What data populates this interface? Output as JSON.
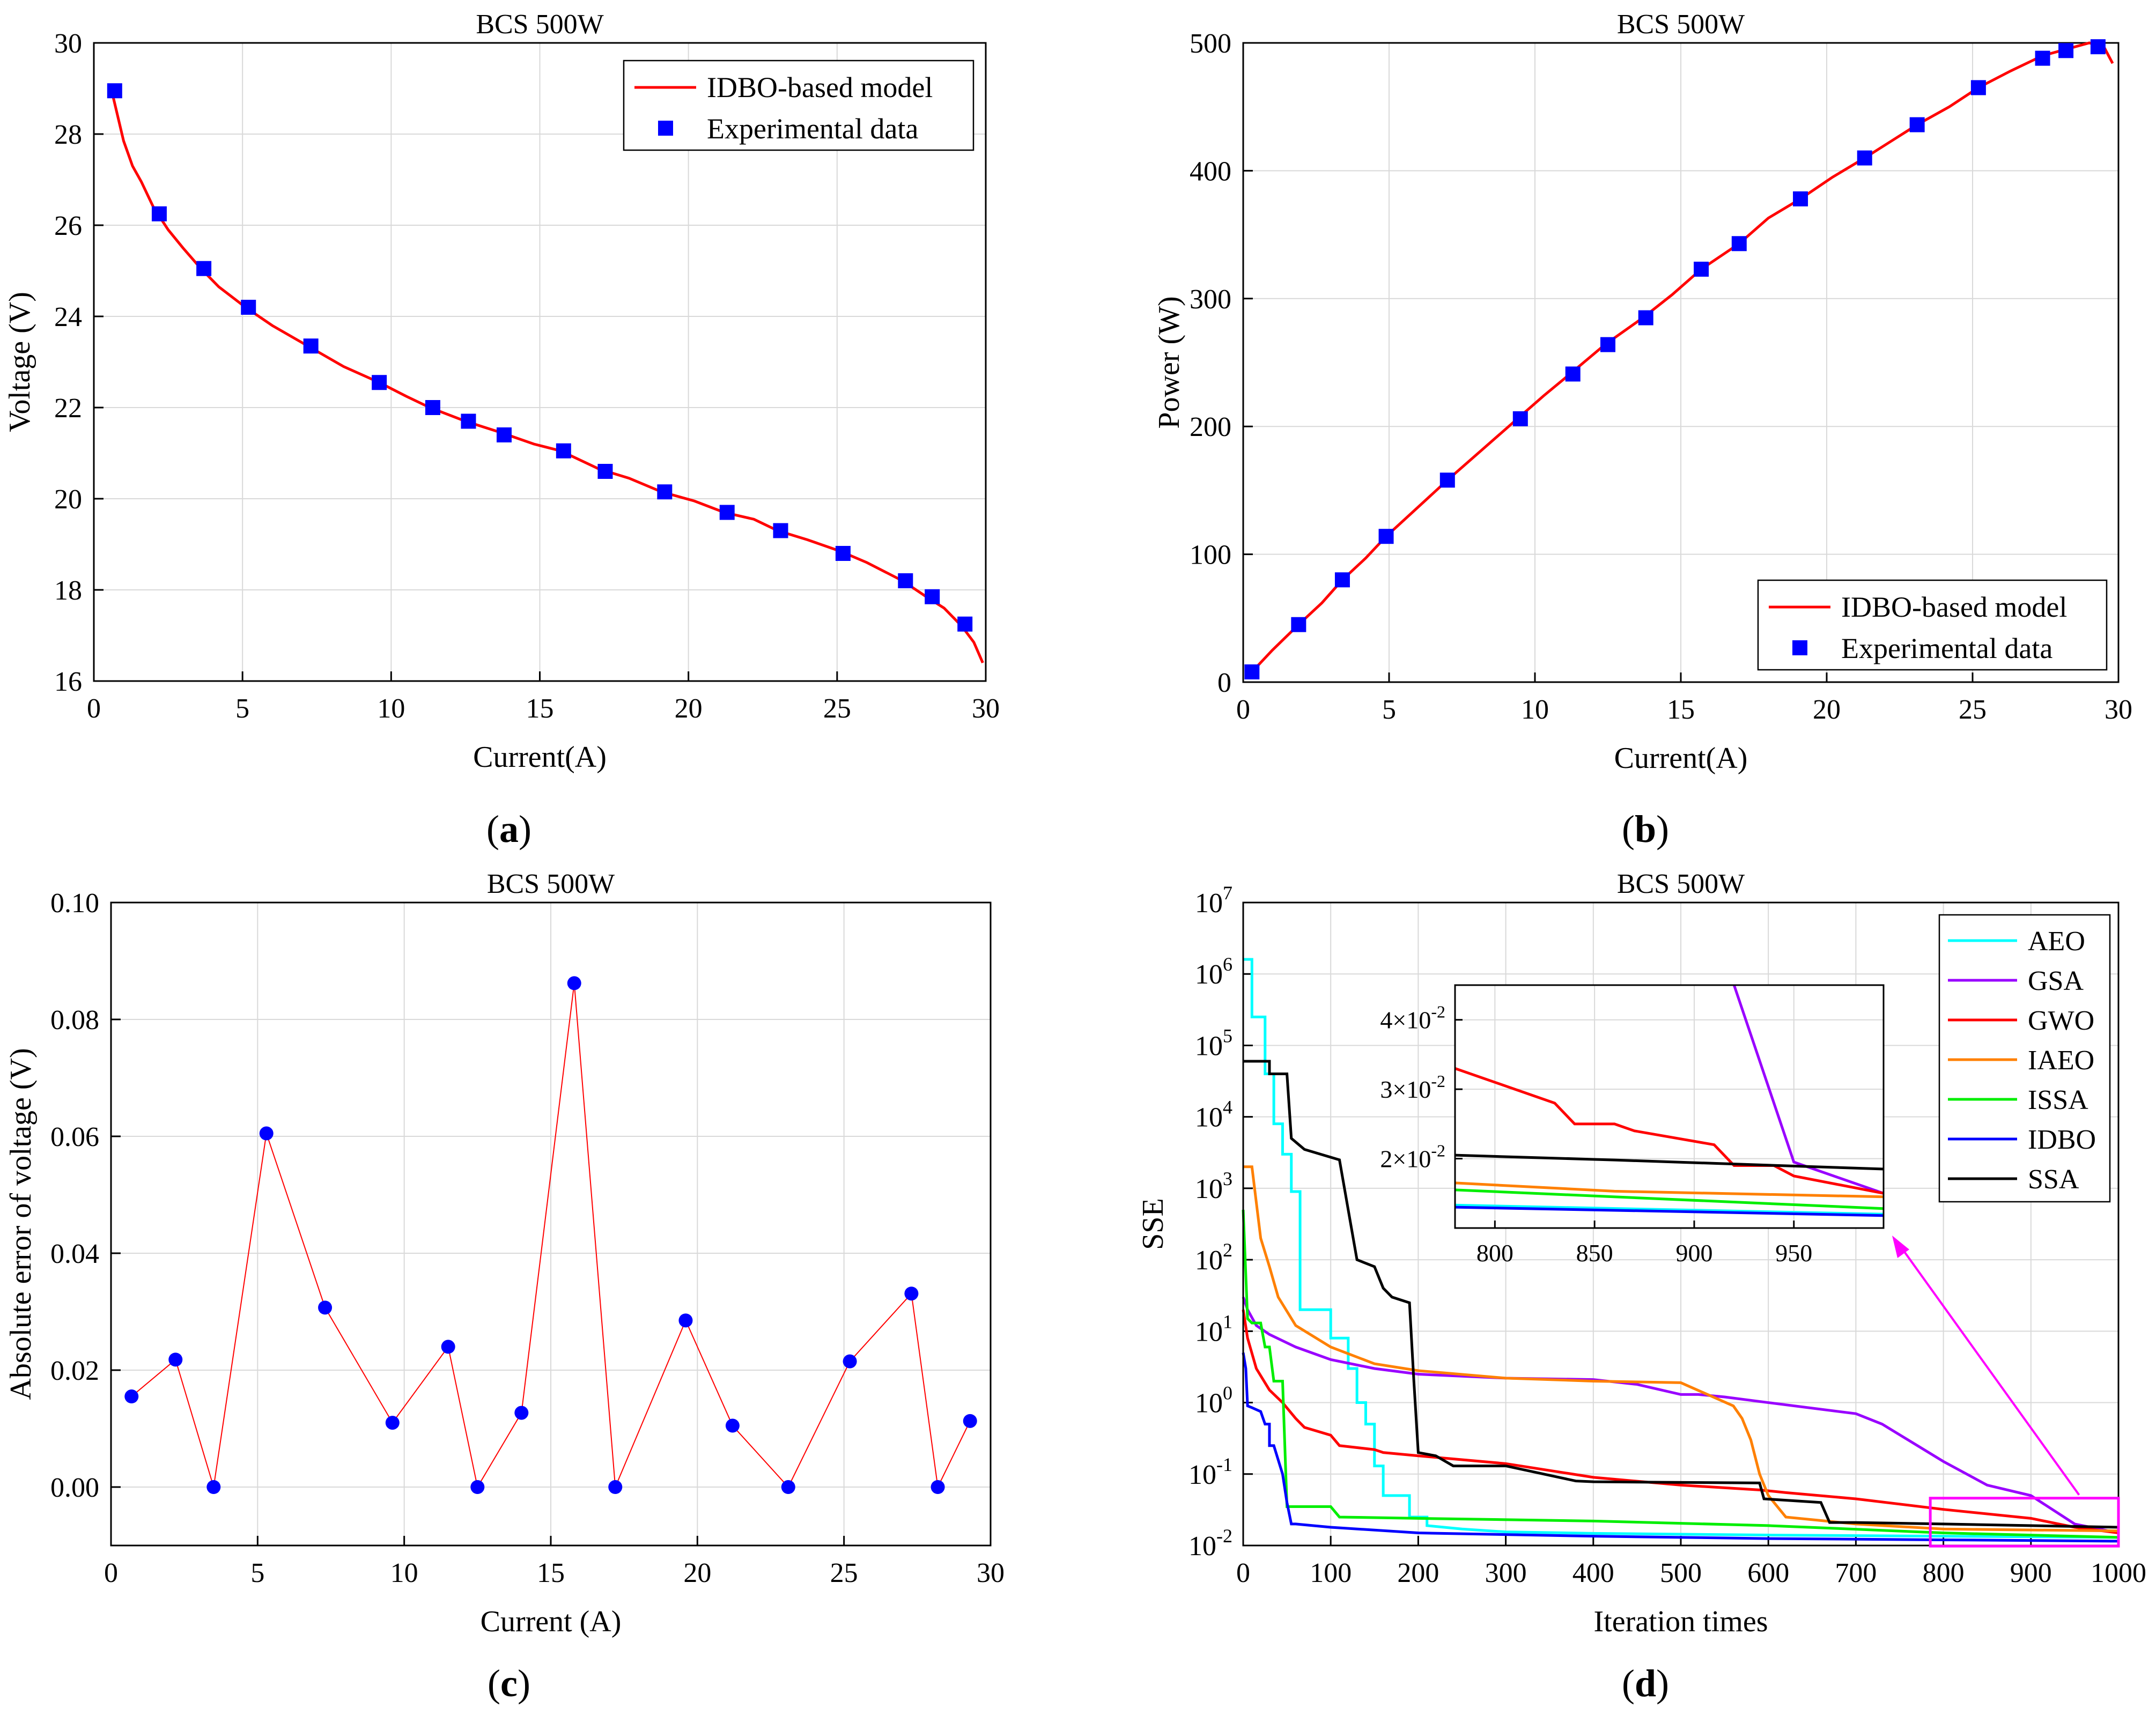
{
  "colors": {
    "model_line": "#ff0000",
    "exp_marker": "#0000ff",
    "error_line": "#ff0000",
    "error_marker": "#0000ff",
    "grid": "#d9d9d9",
    "inset_box": "#ff00ff"
  },
  "chart_data": [
    {
      "id": "a",
      "type": "line",
      "title": "BCS 500W",
      "panel_label": "(a)",
      "xlabel": "Current(A)",
      "ylabel": "Voltage (V)",
      "xlim": [
        0,
        30
      ],
      "ylim": [
        16,
        30
      ],
      "xticks": [
        0,
        5,
        10,
        15,
        20,
        25,
        30
      ],
      "yticks": [
        16,
        18,
        20,
        22,
        24,
        26,
        28,
        30
      ],
      "legend": {
        "position": "top-right",
        "entries": [
          "IDBO-based model",
          "Experimental data"
        ]
      },
      "model_curve": {
        "name": "IDBO-based model",
        "x": [
          0.6,
          0.8,
          1.0,
          1.3,
          1.6,
          2.0,
          2.5,
          3.0,
          3.6,
          4.2,
          5.1,
          6.0,
          7.2,
          8.4,
          9.6,
          10.5,
          11.3,
          12.5,
          13.7,
          14.8,
          15.7,
          17.0,
          18.0,
          19.1,
          20.2,
          21.2,
          22.2,
          23.0,
          24.0,
          25.1,
          26.0,
          27.2,
          28.0,
          28.6,
          29.2,
          29.6,
          29.9
        ],
        "y": [
          28.95,
          28.4,
          27.85,
          27.3,
          26.95,
          26.4,
          25.9,
          25.5,
          25.05,
          24.65,
          24.2,
          23.8,
          23.35,
          22.9,
          22.55,
          22.25,
          22.0,
          21.7,
          21.45,
          21.2,
          21.05,
          20.65,
          20.45,
          20.15,
          19.95,
          19.7,
          19.55,
          19.3,
          19.1,
          18.85,
          18.6,
          18.2,
          17.85,
          17.6,
          17.2,
          16.85,
          16.4
        ]
      },
      "experimental": {
        "name": "Experimental data",
        "x": [
          0.7,
          2.2,
          3.7,
          5.2,
          7.3,
          9.6,
          11.4,
          12.6,
          13.8,
          15.8,
          17.2,
          19.2,
          21.3,
          23.1,
          25.2,
          27.3,
          28.2,
          29.3
        ],
        "y": [
          28.95,
          26.25,
          25.05,
          24.2,
          23.35,
          22.55,
          22.0,
          21.7,
          21.4,
          21.05,
          20.6,
          20.15,
          19.7,
          19.3,
          18.8,
          18.2,
          17.85,
          17.25
        ]
      }
    },
    {
      "id": "b",
      "type": "line",
      "title": "BCS 500W",
      "panel_label": "(b)",
      "xlabel": "Current(A)",
      "ylabel": "Power (W)",
      "xlim": [
        0,
        30
      ],
      "ylim": [
        0,
        500
      ],
      "xticks": [
        0,
        5,
        10,
        15,
        20,
        25,
        30
      ],
      "yticks": [
        0,
        100,
        200,
        300,
        400,
        500
      ],
      "legend": {
        "position": "bottom-right",
        "entries": [
          "IDBO-based model",
          "Experimental data"
        ]
      },
      "model_curve": {
        "name": "IDBO-based model",
        "x": [
          0.3,
          1.0,
          1.9,
          2.7,
          3.4,
          4.2,
          4.9,
          6.0,
          7.0,
          8.2,
          9.4,
          10.3,
          11.2,
          12.4,
          13.7,
          14.7,
          15.7,
          17.0,
          18.0,
          19.1,
          20.2,
          21.3,
          22.2,
          23.1,
          24.2,
          25.2,
          26.3,
          27.4,
          28.2,
          29.0,
          29.5,
          29.8
        ],
        "y": [
          8,
          25,
          45,
          62,
          80,
          97,
          114,
          137,
          158,
          182,
          206,
          224,
          241,
          264,
          285,
          303,
          323,
          343,
          363,
          378,
          395,
          410,
          423,
          436,
          450,
          465,
          478,
          490,
          495,
          500,
          497,
          484
        ]
      },
      "experimental": {
        "name": "Experimental data",
        "x": [
          0.3,
          1.9,
          3.4,
          4.9,
          7.0,
          9.5,
          11.3,
          12.5,
          13.8,
          15.7,
          17.0,
          19.1,
          21.3,
          23.1,
          25.2,
          27.4,
          28.2,
          29.3
        ],
        "y": [
          8,
          45,
          80,
          114,
          158,
          206,
          241,
          264,
          285,
          323,
          343,
          378,
          410,
          436,
          465,
          488,
          494,
          497
        ]
      }
    },
    {
      "id": "c",
      "type": "line",
      "title": "BCS 500W",
      "panel_label": "(c)",
      "xlabel": "Current (A)",
      "ylabel": "Absolute error of voltage (V)",
      "xlim": [
        0,
        30
      ],
      "ylim": [
        -0.01,
        0.1
      ],
      "xticks": [
        0,
        5,
        10,
        15,
        20,
        25,
        30
      ],
      "yticks": [
        0.0,
        0.02,
        0.04,
        0.06,
        0.08,
        0.1
      ],
      "ytick_labels": [
        "0.00",
        "0.02",
        "0.04",
        "0.06",
        "0.08",
        "0.10"
      ],
      "series": [
        {
          "name": "Absolute error",
          "x": [
            0.7,
            2.2,
            3.5,
            5.3,
            7.3,
            9.6,
            11.5,
            12.5,
            14.0,
            15.8,
            17.2,
            19.6,
            21.2,
            23.1,
            25.2,
            27.3,
            28.2,
            29.3
          ],
          "y": [
            0.0155,
            0.0218,
            0.0,
            0.0605,
            0.0307,
            0.011,
            0.024,
            0.0,
            0.0127,
            0.0862,
            0.0,
            0.0285,
            0.0105,
            0.0,
            0.0215,
            0.0331,
            0.0,
            0.0113
          ]
        }
      ]
    },
    {
      "id": "d",
      "type": "line",
      "title": "BCS 500W",
      "panel_label": "(d)",
      "xlabel": "Iteration times",
      "ylabel": "SSE",
      "yscale": "log",
      "xlim": [
        0,
        1000
      ],
      "ylim_exp": [
        -2,
        7
      ],
      "xticks": [
        0,
        100,
        200,
        300,
        400,
        500,
        600,
        700,
        800,
        900,
        1000
      ],
      "ytick_exps": [
        -2,
        -1,
        0,
        1,
        2,
        3,
        4,
        5,
        6,
        7
      ],
      "ytick_base": "10",
      "legend": {
        "position": "top-right"
      },
      "series": [
        {
          "name": "AEO",
          "color": "#00ffff",
          "x": [
            0,
            10,
            10,
            25,
            25,
            35,
            35,
            45,
            45,
            55,
            55,
            65,
            65,
            100,
            100,
            120,
            120,
            130,
            130,
            140,
            140,
            150,
            150,
            160,
            160,
            190,
            190,
            210,
            210,
            250,
            300,
            400,
            600,
            800,
            1000
          ],
          "y": [
            1600000.0,
            1600000.0,
            250000.0,
            250000.0,
            40000.0,
            40000.0,
            8000.0,
            8000.0,
            3000.0,
            3000.0,
            900,
            900,
            20,
            20,
            8,
            8,
            3,
            3,
            1,
            1,
            0.5,
            0.5,
            0.13,
            0.13,
            0.05,
            0.05,
            0.025,
            0.025,
            0.019,
            0.017,
            0.0155,
            0.0148,
            0.014,
            0.0135,
            0.013
          ]
        },
        {
          "name": "GSA",
          "color": "#9900ff",
          "x": [
            0,
            5,
            15,
            30,
            60,
            100,
            150,
            200,
            300,
            400,
            450,
            500,
            520,
            550,
            600,
            700,
            730,
            800,
            850,
            900,
            950,
            1000
          ],
          "y": [
            30,
            20,
            12,
            9,
            6,
            4,
            3,
            2.5,
            2.2,
            2.1,
            1.8,
            1.3,
            1.3,
            1.2,
            1.0,
            0.7,
            0.5,
            0.15,
            0.07,
            0.05,
            0.02,
            0.015
          ]
        },
        {
          "name": "GWO",
          "color": "#ff0000",
          "x": [
            0,
            5,
            15,
            30,
            45,
            60,
            70,
            100,
            110,
            150,
            160,
            200,
            300,
            400,
            500,
            590,
            620,
            700,
            800,
            900,
            950,
            1000
          ],
          "y": [
            20,
            8,
            3,
            1.5,
            1.0,
            0.6,
            0.45,
            0.35,
            0.25,
            0.22,
            0.2,
            0.18,
            0.14,
            0.09,
            0.07,
            0.06,
            0.055,
            0.045,
            0.032,
            0.024,
            0.018,
            0.015
          ]
        },
        {
          "name": "IAEO",
          "color": "#ff8000",
          "x": [
            0,
            10,
            20,
            30,
            40,
            60,
            100,
            150,
            200,
            300,
            400,
            500,
            560,
            570,
            580,
            590,
            600,
            620,
            700,
            800,
            1000
          ],
          "y": [
            2000,
            2000,
            200,
            80,
            30,
            12,
            6,
            3.5,
            2.8,
            2.2,
            2.0,
            1.9,
            0.9,
            0.6,
            0.3,
            0.1,
            0.05,
            0.025,
            0.02,
            0.017,
            0.016
          ]
        },
        {
          "name": "ISSA",
          "color": "#00ee00",
          "x": [
            0,
            5,
            10,
            20,
            25,
            30,
            35,
            45,
            50,
            50,
            100,
            110,
            200,
            400,
            600,
            800,
            1000
          ],
          "y": [
            500,
            15,
            13,
            13,
            6,
            6,
            2,
            2,
            0.035,
            0.035,
            0.035,
            0.025,
            0.024,
            0.022,
            0.019,
            0.015,
            0.013
          ]
        },
        {
          "name": "IDBO",
          "color": "#0000ff",
          "x": [
            0,
            3,
            5,
            10,
            20,
            25,
            30,
            30,
            35,
            45,
            50,
            55,
            60,
            100,
            200,
            400,
            600,
            800,
            1000
          ],
          "y": [
            5,
            3,
            0.9,
            0.85,
            0.75,
            0.5,
            0.5,
            0.25,
            0.25,
            0.1,
            0.04,
            0.02,
            0.02,
            0.018,
            0.015,
            0.0135,
            0.0125,
            0.012,
            0.0115
          ]
        },
        {
          "name": "SSA",
          "color": "#000000",
          "x": [
            0,
            30,
            30,
            50,
            55,
            70,
            110,
            130,
            150,
            160,
            170,
            190,
            195,
            200,
            220,
            240,
            300,
            380,
            400,
            590,
            595,
            660,
            670,
            700,
            800,
            1000
          ],
          "y": [
            60000.0,
            60000.0,
            40000.0,
            40000.0,
            5000.0,
            3500.0,
            2500.0,
            100,
            80,
            40,
            30,
            25,
            2,
            0.2,
            0.18,
            0.13,
            0.13,
            0.08,
            0.078,
            0.075,
            0.045,
            0.04,
            0.021,
            0.021,
            0.02,
            0.018
          ]
        }
      ],
      "inset": {
        "xlim": [
          780,
          995
        ],
        "ylim": [
          0.01,
          0.045
        ],
        "xticks": [
          800,
          850,
          900,
          950
        ],
        "yticks": [
          0.02,
          0.03,
          0.04
        ],
        "ytick_labels": [
          [
            "2",
            "-2"
          ],
          [
            "3",
            "-2"
          ],
          [
            "4",
            "-2"
          ]
        ],
        "series": [
          {
            "name": "GSA",
            "x": [
              920,
              950,
              995
            ],
            "y": [
              0.045,
              0.0195,
              0.015
            ]
          },
          {
            "name": "GWO",
            "x": [
              780,
              830,
              840,
              860,
              870,
              910,
              920,
              940,
              950,
              995
            ],
            "y": [
              0.033,
              0.028,
              0.025,
              0.025,
              0.024,
              0.022,
              0.019,
              0.019,
              0.0175,
              0.015
            ]
          },
          {
            "name": "SSA",
            "x": [
              780,
              860,
              995
            ],
            "y": [
              0.0205,
              0.0198,
              0.0185
            ]
          },
          {
            "name": "IAEO",
            "x": [
              780,
              860,
              995
            ],
            "y": [
              0.0165,
              0.0153,
              0.0145
            ]
          },
          {
            "name": "ISSA",
            "x": [
              780,
              995
            ],
            "y": [
              0.0155,
              0.0128
            ]
          },
          {
            "name": "AEO",
            "x": [
              780,
              995
            ],
            "y": [
              0.0133,
              0.012
            ]
          },
          {
            "name": "IDBO",
            "x": [
              780,
              995
            ],
            "y": [
              0.013,
              0.0118
            ]
          }
        ]
      }
    }
  ]
}
